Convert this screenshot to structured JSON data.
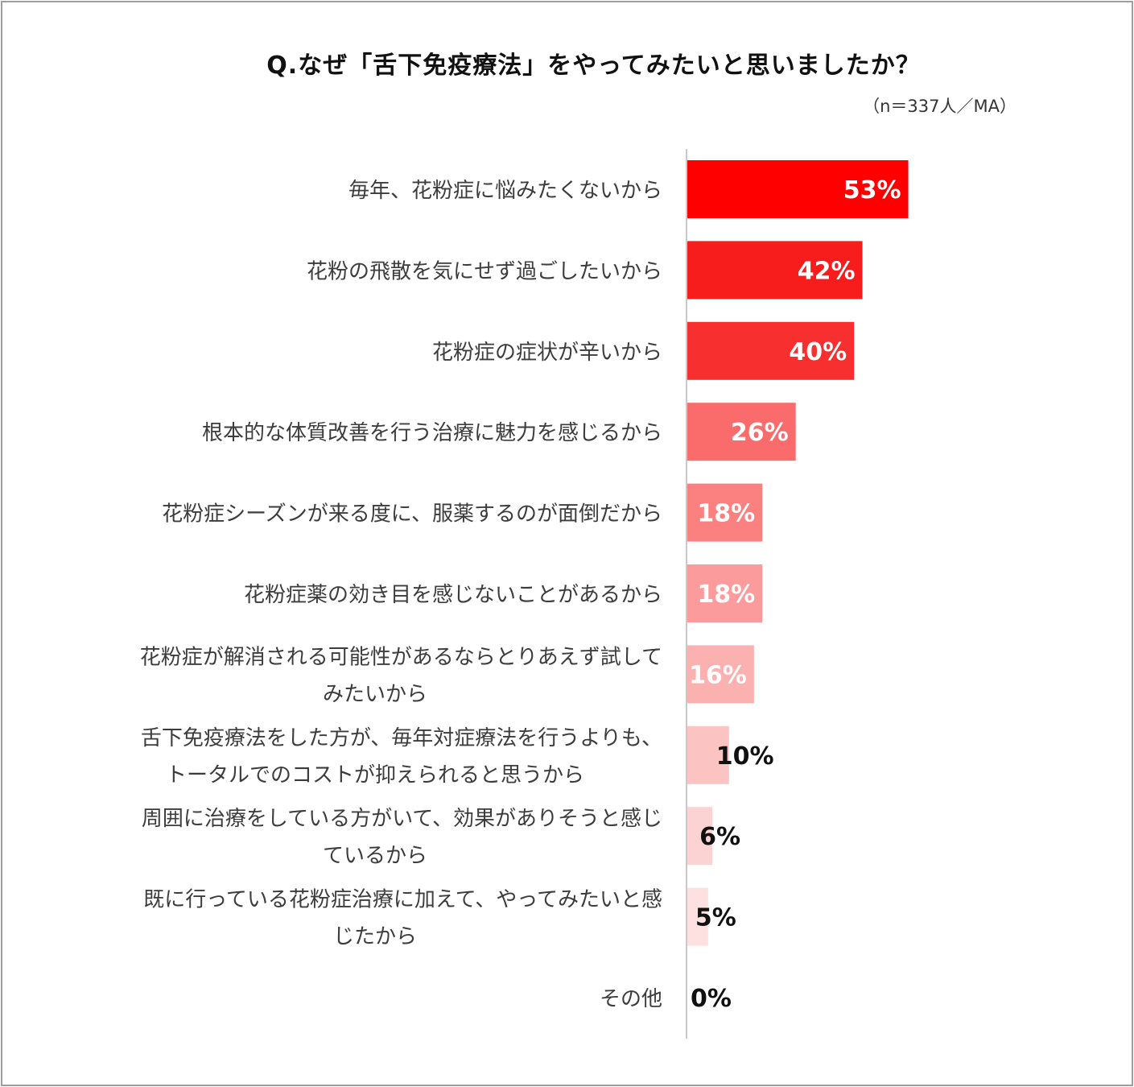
{
  "chart_data": {
    "type": "bar",
    "orientation": "horizontal",
    "title": "Q.なぜ「舌下免疫療法」をやってみたいと思いましたか？",
    "note": "（n＝337人／MA）",
    "unit": "%",
    "categories": [
      "毎年、花粉症に悩みたくないから",
      "花粉の飛散を気にせず過ごしたいから",
      "花粉症の症状が辛いから",
      "根本的な体質改善を行う治療に魅力を感じるから",
      "花粉症シーズンが来る度に、服薬するのが面倒だから",
      "花粉症薬の効き目を感じないことがあるから",
      "花粉症が解消される可能性があるならとりあえず試してみたいから",
      "舌下免疫療法をした方が、毎年対症療法を行うよりも、トータルでのコストが抑えられると思うから",
      "周囲に治療をしている方がいて、効果がありそうと感じているから",
      "既に行っている花粉症治療に加えて、やってみたいと感じたから",
      "その他"
    ],
    "category_lines": [
      [
        "毎年、花粉症に悩みたくないから"
      ],
      [
        "花粉の飛散を気にせず過ごしたいから"
      ],
      [
        "花粉症の症状が辛いから"
      ],
      [
        "根本的な体質改善を行う治療に魅力を感じるから"
      ],
      [
        "花粉症シーズンが来る度に、服薬するのが面倒だから"
      ],
      [
        "花粉症薬の効き目を感じないことがあるから"
      ],
      [
        "花粉症が解消される可能性があるならとりあえず試して",
        "みたいから"
      ],
      [
        "舌下免疫療法をした方が、毎年対症療法を行うよりも、",
        "トータルでのコストが抑えられると思うから"
      ],
      [
        "周囲に治療をしている方がいて、効果がありそうと感じ",
        "ているから"
      ],
      [
        "既に行っている花粉症治療に加えて、やってみたいと感",
        "じたから"
      ],
      [
        "その他"
      ]
    ],
    "values": [
      53,
      42,
      40,
      26,
      18,
      18,
      16,
      10,
      6,
      5,
      0
    ],
    "value_labels": [
      "53%",
      "42%",
      "40%",
      "26%",
      "18%",
      "18%",
      "16%",
      "10%",
      "6%",
      "5%",
      "0%"
    ],
    "colors": [
      "#ff0000",
      "#f71d1d",
      "#f72f2f",
      "#fa6b6b",
      "#fb8181",
      "#fb9b9b",
      "#fcb1b1",
      "#fcc3c3",
      "#fcd3d3",
      "#fde0e0",
      "#ffffff"
    ],
    "value_label_colors": [
      "#ffffff",
      "#ffffff",
      "#ffffff",
      "#ffffff",
      "#ffffff",
      "#ffffff",
      "#ffffff",
      "#111111",
      "#111111",
      "#111111",
      "#111111"
    ],
    "xlim": [
      0,
      100
    ],
    "grid": false,
    "legend": "none"
  }
}
